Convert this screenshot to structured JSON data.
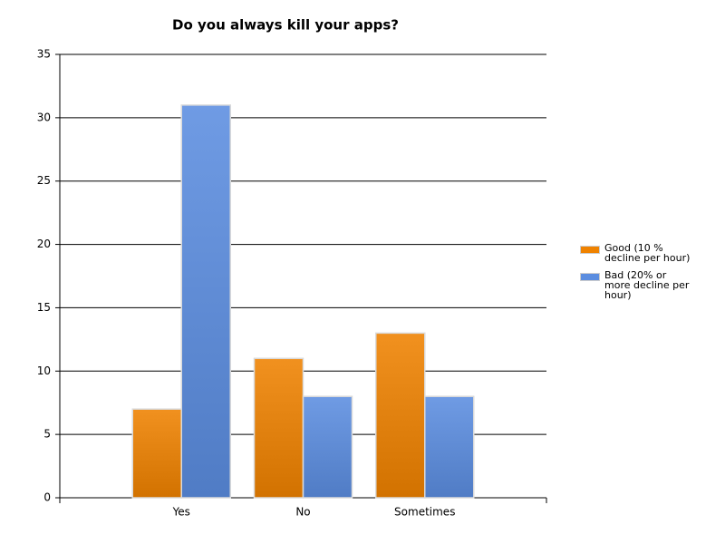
{
  "chart_data": {
    "type": "bar",
    "title": "Do you always kill your apps?",
    "categories": [
      "Yes",
      "No",
      "Sometimes"
    ],
    "series": [
      {
        "name": "Good (10 % decline per hour)",
        "color": "#ef8200",
        "values": [
          7,
          11,
          13
        ]
      },
      {
        "name": "Bad (20% or more decline per hour)",
        "color": "#5b8de0",
        "values": [
          31,
          8,
          8
        ]
      }
    ],
    "ylim": [
      0,
      35
    ],
    "yticks": [
      0,
      5,
      10,
      15,
      20,
      25,
      30,
      35
    ],
    "grid": true,
    "legend": "right"
  }
}
